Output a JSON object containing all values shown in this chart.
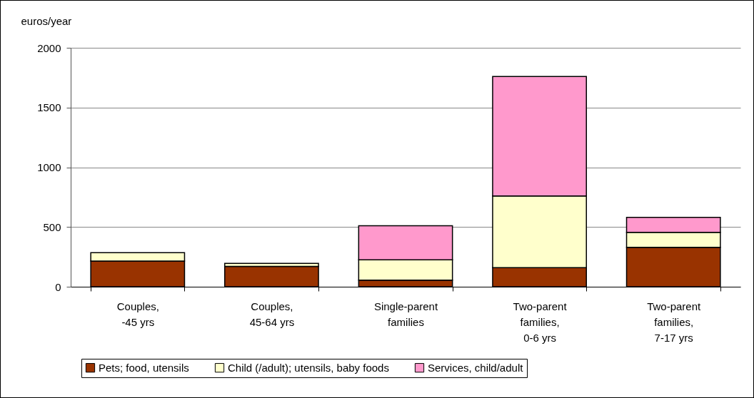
{
  "chart_data": {
    "type": "bar",
    "stacked": true,
    "ylabel": "euros/year",
    "categories": [
      "Couples,\n-45 yrs",
      "Couples,\n45-64 yrs",
      "Single-parent\nfamilies",
      "Two-parent\nfamilies,\n0-6 yrs",
      "Two-parent\nfamilies,\n7-17 yrs"
    ],
    "series": [
      {
        "name": "Pets; food, utensils",
        "color": "#993300",
        "values": [
          215,
          170,
          55,
          160,
          330
        ]
      },
      {
        "name": "Child (/adult); utensils, baby foods",
        "color": "#ffffcc",
        "values": [
          70,
          25,
          170,
          600,
          125
        ]
      },
      {
        "name": "Services, child/adult",
        "color": "#ff99cc",
        "values": [
          null,
          null,
          285,
          1000,
          125
        ]
      }
    ],
    "ylim": [
      0,
      2000
    ],
    "yticks": [
      0,
      500,
      1000,
      1500,
      2000
    ],
    "grid": "y",
    "legend": "bottom"
  }
}
